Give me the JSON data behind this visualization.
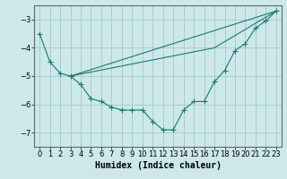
{
  "title": "",
  "xlabel": "Humidex (Indice chaleur)",
  "ylabel": "",
  "bg_color": "#cce8ea",
  "grid_color": "#aaccce",
  "line_color": "#1a7a6e",
  "xlim": [
    -0.5,
    23.5
  ],
  "ylim": [
    -7.5,
    -2.5
  ],
  "yticks": [
    -7,
    -6,
    -5,
    -4,
    -3
  ],
  "xticks": [
    0,
    1,
    2,
    3,
    4,
    5,
    6,
    7,
    8,
    9,
    10,
    11,
    12,
    13,
    14,
    15,
    16,
    17,
    18,
    19,
    20,
    21,
    22,
    23
  ],
  "line1_x": [
    0,
    1,
    2,
    3,
    4,
    5,
    6,
    7,
    8,
    9,
    10,
    11,
    12,
    13,
    14,
    15,
    16,
    17,
    18,
    19,
    20,
    21,
    22,
    23
  ],
  "line1_y": [
    -3.5,
    -4.5,
    -4.9,
    -5.0,
    -5.3,
    -5.8,
    -5.9,
    -6.1,
    -6.2,
    -6.2,
    -6.2,
    -6.6,
    -6.9,
    -6.9,
    -6.2,
    -5.9,
    -5.9,
    -5.2,
    -4.8,
    -4.1,
    -3.85,
    -3.3,
    -3.05,
    -2.7
  ],
  "line2_x": [
    3,
    23
  ],
  "line2_y": [
    -5.0,
    -2.7
  ],
  "line3_x": [
    3,
    17,
    23
  ],
  "line3_y": [
    -5.0,
    -4.0,
    -2.7
  ],
  "marker_size": 4,
  "tick_fontsize": 6,
  "xlabel_fontsize": 7
}
